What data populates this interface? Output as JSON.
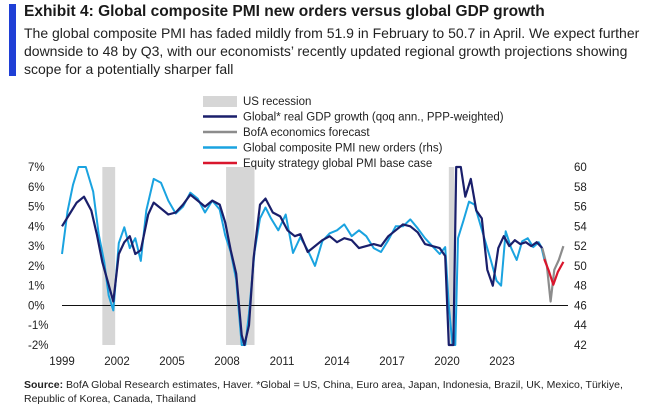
{
  "exhibit": {
    "title": "Exhibit 4: Global composite PMI new orders versus global GDP growth",
    "subtitle": "The global composite PMI has faded mildly from 51.9 in February to 50.7 in April. We expect further downside to 48 by Q3, with our economists’ recently updated regional growth projections showing scope for a potentially sharper fall",
    "source_label": "Source:",
    "source_text": " BofA Global Research estimates, Haver. *Global = US, China, Euro area, Japan, Indonesia, Brazil, UK, Mexico, Türkiye, Republic of Korea, Canada, Thailand"
  },
  "colors": {
    "gdp": "#1a1f6b",
    "forecast": "#8c8c8c",
    "pmi": "#1aa3e0",
    "equity": "#d9162d",
    "recession": "#d6d6d6",
    "accent": "#1f3fd6"
  },
  "chart_data": {
    "type": "line",
    "title": "",
    "x_ticks": [
      "1999",
      "2002",
      "2005",
      "2008",
      "2011",
      "2014",
      "2017",
      "2020",
      "2023"
    ],
    "xlim": [
      1999,
      2026.6
    ],
    "left_axis": {
      "ticks": [
        "7%",
        "6%",
        "5%",
        "4%",
        "3%",
        "2%",
        "1%",
        "0%",
        "-1%",
        "-2%"
      ],
      "ylim": [
        -2,
        7
      ]
    },
    "right_axis": {
      "ticks": [
        "60",
        "58",
        "56",
        "54",
        "52",
        "50",
        "48",
        "46",
        "44",
        "42"
      ],
      "ylim": [
        42,
        60
      ]
    },
    "legend": [
      {
        "key": "recession",
        "label": "US recession"
      },
      {
        "key": "gdp",
        "label": "Global* real GDP growth (qoq ann., PPP-weighted)"
      },
      {
        "key": "forecast",
        "label": "BofA economics forecast"
      },
      {
        "key": "pmi",
        "label": "Global composite PMI new orders (rhs)"
      },
      {
        "key": "equity",
        "label": "Equity strategy global PMI base case"
      }
    ],
    "legend_position": "top-center",
    "recessions": [
      [
        2001.2,
        2001.9
      ],
      [
        2007.95,
        2009.5
      ],
      [
        2020.1,
        2020.4
      ]
    ],
    "series": [
      {
        "key": "gdp",
        "name": "Global* real GDP growth (qoq ann., PPP-weighted)",
        "axis": "left",
        "points": [
          [
            1999.0,
            4.0
          ],
          [
            1999.4,
            4.6
          ],
          [
            1999.8,
            5.2
          ],
          [
            2000.2,
            5.5
          ],
          [
            2000.6,
            4.8
          ],
          [
            2000.9,
            3.6
          ],
          [
            2001.2,
            2.2
          ],
          [
            2001.5,
            1.2
          ],
          [
            2001.8,
            0.2
          ],
          [
            2002.1,
            2.6
          ],
          [
            2002.4,
            3.2
          ],
          [
            2002.7,
            3.5
          ],
          [
            2003.0,
            2.6
          ],
          [
            2003.3,
            2.8
          ],
          [
            2003.7,
            4.6
          ],
          [
            2004.0,
            5.2
          ],
          [
            2004.4,
            4.9
          ],
          [
            2004.8,
            4.6
          ],
          [
            2005.2,
            4.7
          ],
          [
            2005.6,
            5.1
          ],
          [
            2006.0,
            5.6
          ],
          [
            2006.4,
            5.3
          ],
          [
            2006.8,
            5.0
          ],
          [
            2007.2,
            5.3
          ],
          [
            2007.6,
            5.1
          ],
          [
            2007.9,
            4.2
          ],
          [
            2008.2,
            2.8
          ],
          [
            2008.5,
            1.6
          ],
          [
            2008.8,
            -1.5
          ],
          [
            2008.95,
            -2.0
          ],
          [
            2009.2,
            -1.0
          ],
          [
            2009.45,
            2.4
          ],
          [
            2009.8,
            5.1
          ],
          [
            2010.1,
            5.4
          ],
          [
            2010.5,
            4.7
          ],
          [
            2010.9,
            4.5
          ],
          [
            2011.3,
            3.8
          ],
          [
            2011.7,
            3.5
          ],
          [
            2012.0,
            3.6
          ],
          [
            2012.4,
            2.7
          ],
          [
            2012.8,
            3.0
          ],
          [
            2013.2,
            3.3
          ],
          [
            2013.6,
            3.5
          ],
          [
            2014.0,
            3.2
          ],
          [
            2014.4,
            3.4
          ],
          [
            2014.8,
            3.3
          ],
          [
            2015.2,
            2.9
          ],
          [
            2015.6,
            3.0
          ],
          [
            2016.0,
            3.1
          ],
          [
            2016.4,
            3.0
          ],
          [
            2016.8,
            3.5
          ],
          [
            2017.2,
            3.8
          ],
          [
            2017.6,
            4.1
          ],
          [
            2018.0,
            4.0
          ],
          [
            2018.4,
            3.7
          ],
          [
            2018.8,
            3.1
          ],
          [
            2019.2,
            3.0
          ],
          [
            2019.6,
            2.9
          ],
          [
            2019.9,
            2.5
          ],
          [
            2020.1,
            -2.0
          ],
          [
            2020.35,
            -2.0
          ],
          [
            2020.5,
            7.0
          ],
          [
            2020.75,
            7.0
          ],
          [
            2021.0,
            5.5
          ],
          [
            2021.3,
            6.4
          ],
          [
            2021.6,
            4.8
          ],
          [
            2021.9,
            4.4
          ],
          [
            2022.2,
            1.8
          ],
          [
            2022.5,
            1.0
          ],
          [
            2022.8,
            2.9
          ],
          [
            2023.1,
            3.5
          ],
          [
            2023.4,
            3.0
          ],
          [
            2023.7,
            3.3
          ],
          [
            2024.0,
            3.1
          ],
          [
            2024.3,
            3.2
          ],
          [
            2024.6,
            3.0
          ],
          [
            2024.9,
            3.2
          ],
          [
            2025.2,
            2.9
          ]
        ]
      },
      {
        "key": "forecast",
        "name": "BofA economics forecast",
        "axis": "left",
        "points": [
          [
            2025.2,
            2.9
          ],
          [
            2025.45,
            2.0
          ],
          [
            2025.65,
            0.2
          ],
          [
            2025.85,
            1.8
          ],
          [
            2026.1,
            2.3
          ],
          [
            2026.35,
            3.0
          ]
        ]
      },
      {
        "key": "pmi",
        "name": "Global composite PMI new orders (rhs)",
        "axis": "right",
        "points": [
          [
            1999.0,
            51.2
          ],
          [
            1999.3,
            55.5
          ],
          [
            1999.6,
            58.2
          ],
          [
            1999.9,
            60.0
          ],
          [
            2000.3,
            60.0
          ],
          [
            2000.7,
            57.5
          ],
          [
            2001.0,
            53.2
          ],
          [
            2001.3,
            50.4
          ],
          [
            2001.55,
            47.0
          ],
          [
            2001.8,
            45.5
          ],
          [
            2002.1,
            52.3
          ],
          [
            2002.4,
            53.9
          ],
          [
            2002.7,
            51.8
          ],
          [
            2003.0,
            52.8
          ],
          [
            2003.3,
            50.5
          ],
          [
            2003.6,
            55.6
          ],
          [
            2004.0,
            58.8
          ],
          [
            2004.4,
            58.4
          ],
          [
            2004.8,
            56.6
          ],
          [
            2005.2,
            55.3
          ],
          [
            2005.6,
            56.0
          ],
          [
            2006.0,
            57.4
          ],
          [
            2006.4,
            56.8
          ],
          [
            2006.8,
            55.4
          ],
          [
            2007.2,
            56.6
          ],
          [
            2007.6,
            55.7
          ],
          [
            2007.9,
            53.1
          ],
          [
            2008.2,
            51.4
          ],
          [
            2008.5,
            48.6
          ],
          [
            2008.8,
            42.0
          ],
          [
            2009.0,
            42.0
          ],
          [
            2009.2,
            45.2
          ],
          [
            2009.5,
            51.4
          ],
          [
            2009.8,
            54.8
          ],
          [
            2010.1,
            55.9
          ],
          [
            2010.4,
            54.8
          ],
          [
            2010.8,
            53.6
          ],
          [
            2011.2,
            55.2
          ],
          [
            2011.6,
            51.3
          ],
          [
            2012.0,
            52.9
          ],
          [
            2012.4,
            51.6
          ],
          [
            2012.8,
            50.0
          ],
          [
            2013.2,
            52.5
          ],
          [
            2013.6,
            53.3
          ],
          [
            2014.0,
            53.6
          ],
          [
            2014.4,
            54.2
          ],
          [
            2014.8,
            53.0
          ],
          [
            2015.2,
            53.6
          ],
          [
            2015.6,
            53.0
          ],
          [
            2016.0,
            51.8
          ],
          [
            2016.4,
            51.4
          ],
          [
            2016.8,
            52.6
          ],
          [
            2017.2,
            54.0
          ],
          [
            2017.6,
            54.0
          ],
          [
            2018.0,
            54.7
          ],
          [
            2018.4,
            53.8
          ],
          [
            2018.8,
            52.8
          ],
          [
            2019.2,
            52.0
          ],
          [
            2019.6,
            51.2
          ],
          [
            2019.9,
            51.9
          ],
          [
            2020.1,
            46.0
          ],
          [
            2020.3,
            42.0
          ],
          [
            2020.45,
            42.0
          ],
          [
            2020.6,
            52.8
          ],
          [
            2020.9,
            54.6
          ],
          [
            2021.2,
            56.5
          ],
          [
            2021.5,
            56.2
          ],
          [
            2021.8,
            54.3
          ],
          [
            2022.1,
            52.4
          ],
          [
            2022.4,
            50.5
          ],
          [
            2022.7,
            48.5
          ],
          [
            2022.95,
            48.0
          ],
          [
            2023.2,
            53.5
          ],
          [
            2023.5,
            51.8
          ],
          [
            2023.8,
            50.6
          ],
          [
            2024.1,
            52.5
          ],
          [
            2024.4,
            52.8
          ],
          [
            2024.7,
            51.9
          ],
          [
            2025.0,
            52.4
          ],
          [
            2025.15,
            51.9
          ],
          [
            2025.3,
            50.7
          ]
        ]
      },
      {
        "key": "equity",
        "name": "Equity strategy global PMI base case",
        "axis": "right",
        "points": [
          [
            2025.3,
            50.7
          ],
          [
            2025.55,
            49.5
          ],
          [
            2025.8,
            48.1
          ],
          [
            2026.05,
            49.4
          ],
          [
            2026.35,
            50.4
          ]
        ]
      }
    ]
  }
}
